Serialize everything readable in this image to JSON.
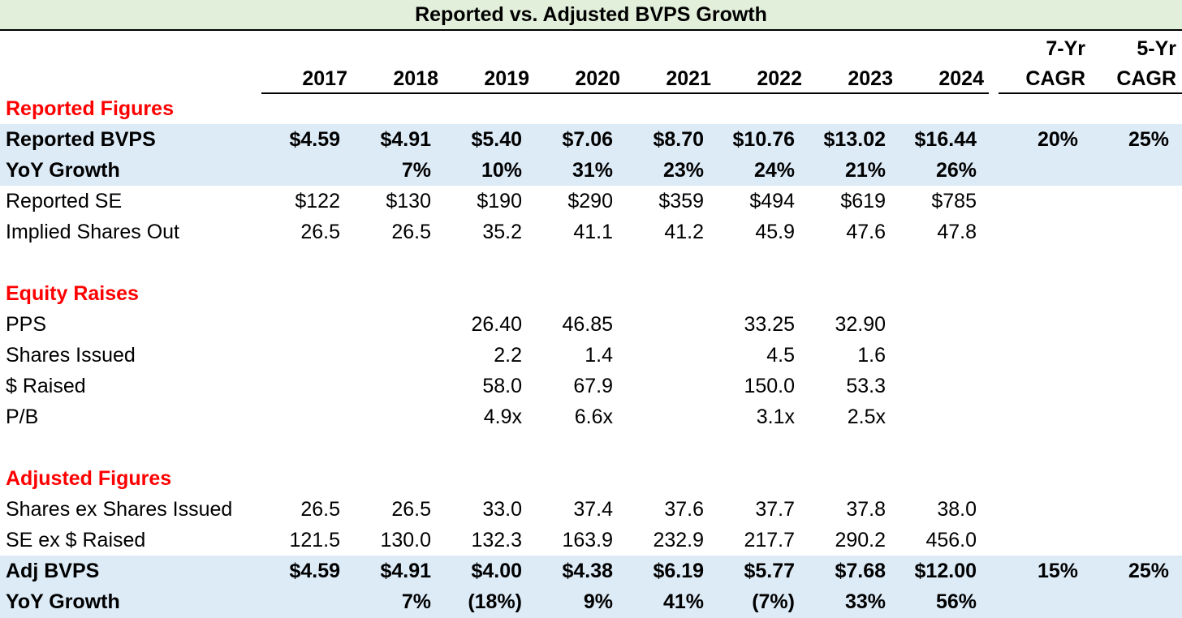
{
  "title": "Reported vs. Adjusted BVPS Growth",
  "headers": {
    "years": [
      "2017",
      "2018",
      "2019",
      "2020",
      "2021",
      "2022",
      "2023",
      "2024"
    ],
    "cagr7_line1": "7-Yr",
    "cagr7_line2": "CAGR",
    "cagr5_line1": "5-Yr",
    "cagr5_line2": "CAGR"
  },
  "sections": {
    "reported": "Reported Figures",
    "equity": "Equity Raises",
    "adjusted": "Adjusted Figures"
  },
  "rows": {
    "reported_bvps": {
      "label": "Reported BVPS",
      "values": [
        "$4.59",
        "$4.91",
        "$5.40",
        "$7.06",
        "$8.70",
        "$10.76",
        "$13.02",
        "$16.44"
      ],
      "cagr7": "20%",
      "cagr5": "25%"
    },
    "reported_yoy": {
      "label": "YoY Growth",
      "values": [
        "",
        "7%",
        "10%",
        "31%",
        "23%",
        "24%",
        "21%",
        "26%"
      ]
    },
    "reported_se": {
      "label": "Reported SE",
      "values": [
        "$122",
        "$130",
        "$190",
        "$290",
        "$359",
        "$494",
        "$619",
        "$785"
      ]
    },
    "implied_shares": {
      "label": "Implied Shares Out",
      "values": [
        "26.5",
        "26.5",
        "35.2",
        "41.1",
        "41.2",
        "45.9",
        "47.6",
        "47.8"
      ]
    },
    "pps": {
      "label": "PPS",
      "values": [
        "",
        "",
        "26.40",
        "46.85",
        "",
        "33.25",
        "32.90",
        ""
      ]
    },
    "shares_issued": {
      "label": "Shares Issued",
      "values": [
        "",
        "",
        "2.2",
        "1.4",
        "",
        "4.5",
        "1.6",
        ""
      ]
    },
    "dollars_raised": {
      "label": "$ Raised",
      "values": [
        "",
        "",
        "58.0",
        "67.9",
        "",
        "150.0",
        "53.3",
        ""
      ]
    },
    "pb": {
      "label": "P/B",
      "values": [
        "",
        "",
        "4.9x",
        "6.6x",
        "",
        "3.1x",
        "2.5x",
        ""
      ]
    },
    "shares_ex": {
      "label": "Shares ex Shares Issued",
      "values": [
        "26.5",
        "26.5",
        "33.0",
        "37.4",
        "37.6",
        "37.7",
        "37.8",
        "38.0"
      ]
    },
    "se_ex": {
      "label": "SE ex $ Raised",
      "values": [
        "121.5",
        "130.0",
        "132.3",
        "163.9",
        "232.9",
        "217.7",
        "290.2",
        "456.0"
      ]
    },
    "adj_bvps": {
      "label": "Adj BVPS",
      "values": [
        "$4.59",
        "$4.91",
        "$4.00",
        "$4.38",
        "$6.19",
        "$5.77",
        "$7.68",
        "$12.00"
      ],
      "cagr7": "15%",
      "cagr5": "25%"
    },
    "adj_yoy": {
      "label": "YoY Growth",
      "values": [
        "",
        "7%",
        "(18%)",
        "9%",
        "41%",
        "(7%)",
        "33%",
        "56%"
      ]
    }
  },
  "colors": {
    "title_bg": "#e2efda",
    "highlight_bg": "#ddebf7",
    "section_text": "#ff0000"
  }
}
